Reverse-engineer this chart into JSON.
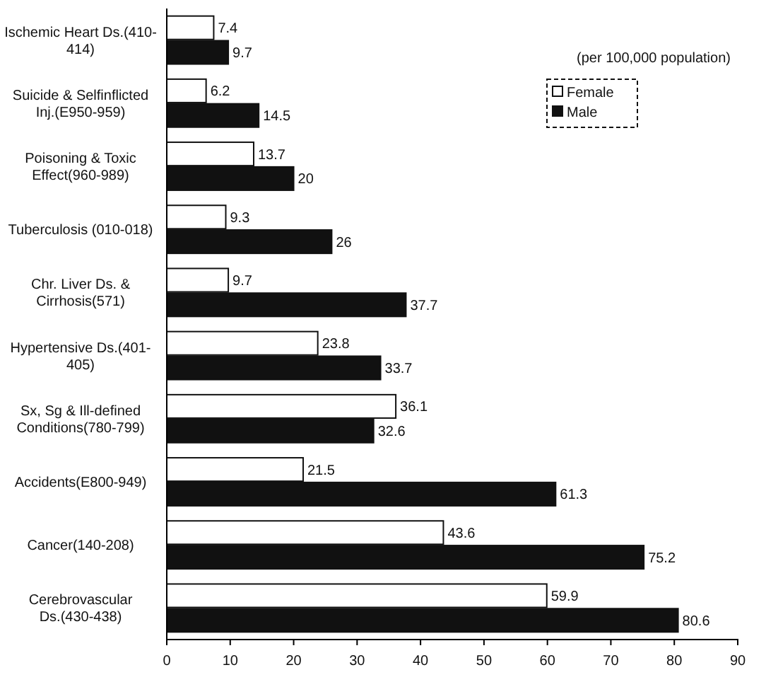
{
  "chart_data": {
    "type": "bar",
    "orientation": "horizontal",
    "categories": [
      "Ischemic Heart Ds.(410-414)",
      "Suicide & Selfinflicted Inj.(E950-959)",
      "Poisoning & Toxic Effect(960-989)",
      "Tuberculosis (010-018)",
      "Chr. Liver Ds. & Cirrhosis(571)",
      "Hypertensive Ds.(401-405)",
      "Sx, Sg & Ill-defined Conditions(780-799)",
      "Accidents(E800-949)",
      "Cancer(140-208)",
      "Cerebrovascular Ds.(430-438)"
    ],
    "series": [
      {
        "name": "Female",
        "color": "#ffffff",
        "values": [
          7.4,
          6.2,
          13.7,
          9.3,
          9.7,
          23.8,
          36.1,
          21.5,
          43.6,
          59.9
        ]
      },
      {
        "name": "Male",
        "color": "#111111",
        "values": [
          9.7,
          14.5,
          20,
          26,
          37.7,
          33.7,
          32.6,
          61.3,
          75.2,
          80.6
        ]
      }
    ],
    "xlim": [
      0,
      90
    ],
    "xticks": [
      0,
      10,
      20,
      30,
      40,
      50,
      60,
      70,
      80,
      90
    ],
    "data_labels": true,
    "legend": "top right",
    "grid": false,
    "annotations": [
      "(per 100,000 population)"
    ]
  }
}
